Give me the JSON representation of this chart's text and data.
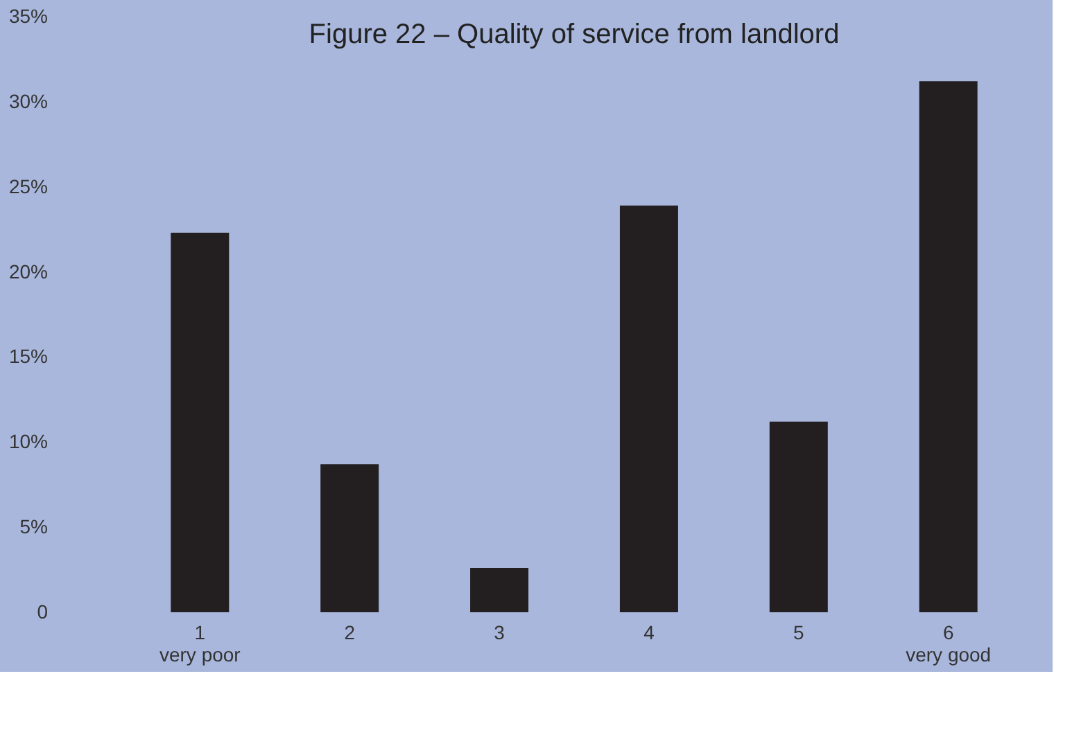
{
  "chart_data": {
    "type": "bar",
    "title": "Figure 22 – Quality of service from landlord",
    "categories": [
      "1\nvery poor",
      "2",
      "3",
      "4",
      "5",
      "6\nvery good"
    ],
    "values": [
      22.3,
      8.7,
      2.6,
      23.9,
      11.2,
      31.2
    ],
    "color": "#231f20",
    "ylim": [
      0,
      35
    ],
    "yticks": [
      0,
      {
        "value": 5,
        "label": "5%"
      },
      {
        "value": 10,
        "label": "10%"
      },
      {
        "value": 15,
        "label": "15%"
      },
      {
        "value": 20,
        "label": "20%"
      },
      {
        "value": 25,
        "label": "25%"
      },
      {
        "value": 30,
        "label": "30%"
      },
      {
        "value": 35,
        "label": "35%"
      }
    ],
    "grid": false
  }
}
